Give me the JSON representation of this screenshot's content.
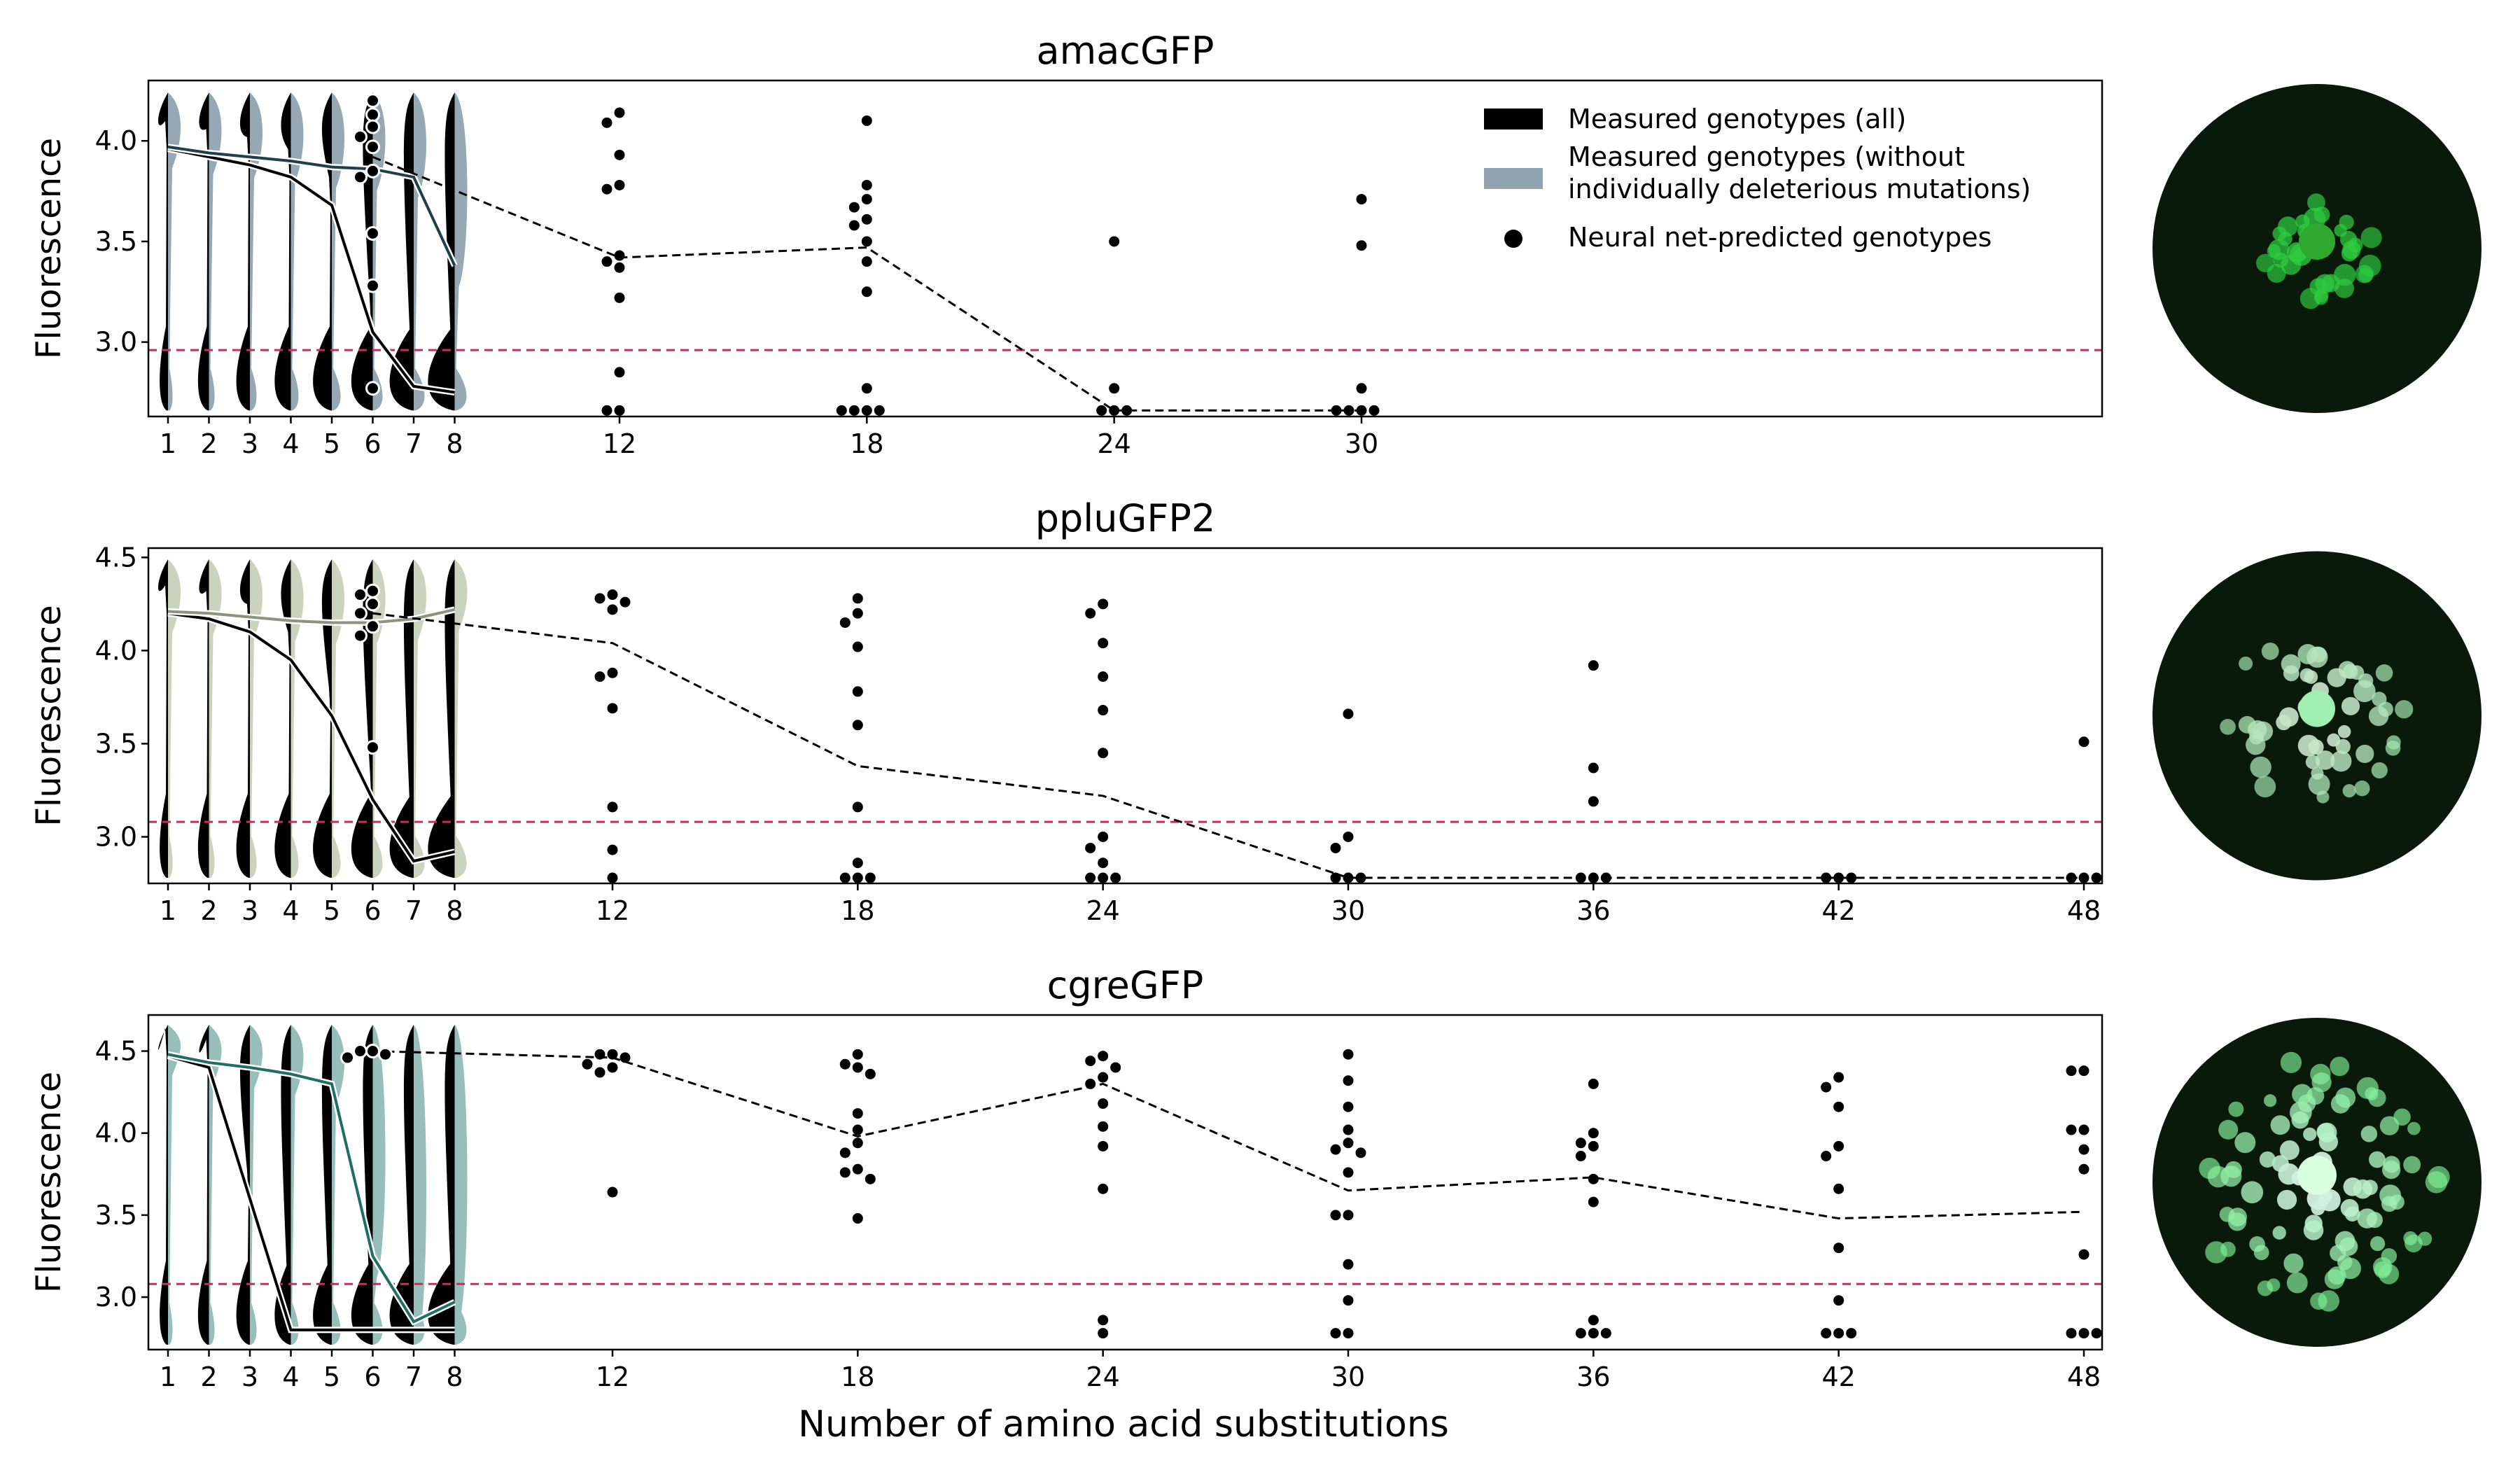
{
  "figure": {
    "xlabel": "Number of amino acid substitutions",
    "legend": {
      "placement": "top-right of first panel",
      "items": [
        {
          "label": "Measured genotypes (all)",
          "swatch": "#000000"
        },
        {
          "label_line1": "Measured genotypes (without",
          "label_line2": "individually deleterious mutations)",
          "swatch": "#8fa3b0"
        },
        {
          "label": "Neural net-predicted genotypes",
          "marker": "dot"
        }
      ]
    }
  },
  "colors": {
    "all": "#000000",
    "threshold": "#d6265a",
    "mean_all_inner": "#000000",
    "image_bg": "#0a1a0a",
    "spot": "#2ecc40"
  },
  "chart_data": [
    {
      "type": "line",
      "title": "amacGFP",
      "ylabel": "Fluorescence",
      "ylim": [
        2.63,
        4.3
      ],
      "yticks": [
        3.0,
        3.5,
        4.0
      ],
      "ytick_labels": [
        "3.0",
        "3.5",
        "4.0"
      ],
      "xticks": [
        1,
        2,
        3,
        4,
        5,
        6,
        7,
        8,
        12,
        18,
        24,
        30
      ],
      "xtick_labels": [
        "1",
        "2",
        "3",
        "4",
        "5",
        "6",
        "7",
        "8",
        "12",
        "18",
        "24",
        "30"
      ],
      "threshold": 2.96,
      "filtered_color": "#8fa3b0",
      "mean_line_color": "#1f3f4a",
      "series": [
        {
          "name": "Measured genotypes (all)",
          "x": [
            1,
            2,
            3,
            4,
            5,
            6,
            7,
            8
          ],
          "y": [
            3.96,
            3.92,
            3.88,
            3.82,
            3.68,
            3.05,
            2.78,
            2.75
          ]
        },
        {
          "name": "Measured genotypes (without individually deleterious mutations)",
          "x": [
            1,
            2,
            3,
            4,
            5,
            6,
            7,
            8
          ],
          "y": [
            3.97,
            3.94,
            3.92,
            3.9,
            3.87,
            3.86,
            3.82,
            3.38
          ]
        },
        {
          "name": "Neural net-predicted genotypes",
          "x": [
            6,
            12,
            18,
            24,
            30
          ],
          "y": [
            3.92,
            3.42,
            3.47,
            2.66,
            2.66
          ]
        }
      ],
      "nn_points": [
        [
          6,
          4.2
        ],
        [
          6,
          4.13
        ],
        [
          6,
          4.07
        ],
        [
          6,
          4.02
        ],
        [
          6,
          3.97
        ],
        [
          6,
          3.85
        ],
        [
          6,
          3.82
        ],
        [
          6,
          3.54
        ],
        [
          6,
          3.28
        ],
        [
          6,
          2.77
        ],
        [
          12,
          4.14
        ],
        [
          12,
          4.09
        ],
        [
          12,
          3.93
        ],
        [
          12,
          3.78
        ],
        [
          12,
          3.76
        ],
        [
          12,
          3.43
        ],
        [
          12,
          3.4
        ],
        [
          12,
          3.37
        ],
        [
          12,
          3.22
        ],
        [
          12,
          2.85
        ],
        [
          12,
          2.66
        ],
        [
          12,
          2.66
        ],
        [
          18,
          4.1
        ],
        [
          18,
          3.78
        ],
        [
          18,
          3.71
        ],
        [
          18,
          3.67
        ],
        [
          18,
          3.61
        ],
        [
          18,
          3.58
        ],
        [
          18,
          3.5
        ],
        [
          18,
          3.4
        ],
        [
          18,
          3.25
        ],
        [
          18,
          2.77
        ],
        [
          18,
          2.66
        ],
        [
          18,
          2.66
        ],
        [
          18,
          2.66
        ],
        [
          18,
          2.66
        ],
        [
          24,
          3.5
        ],
        [
          24,
          2.77
        ],
        [
          24,
          2.66
        ],
        [
          24,
          2.66
        ],
        [
          24,
          2.66
        ],
        [
          30,
          3.71
        ],
        [
          30,
          3.48
        ],
        [
          30,
          2.77
        ],
        [
          30,
          2.66
        ],
        [
          30,
          2.66
        ],
        [
          30,
          2.66
        ],
        [
          30,
          2.66
        ]
      ],
      "image_spots": 36
    },
    {
      "type": "line",
      "title": "ppluGFP2",
      "ylabel": "Fluorescence",
      "ylim": [
        2.75,
        4.55
      ],
      "yticks": [
        3.0,
        3.5,
        4.0,
        4.5
      ],
      "ytick_labels": [
        "3.0",
        "3.5",
        "4.0",
        "4.5"
      ],
      "xticks": [
        1,
        2,
        3,
        4,
        5,
        6,
        7,
        8,
        12,
        18,
        24,
        30,
        36,
        42,
        48
      ],
      "xtick_labels": [
        "1",
        "2",
        "3",
        "4",
        "5",
        "6",
        "7",
        "8",
        "12",
        "18",
        "24",
        "30",
        "36",
        "42",
        "48"
      ],
      "threshold": 3.08,
      "filtered_color": "#c8d1bc",
      "mean_line_color": "#8a9480",
      "series": [
        {
          "name": "Measured genotypes (all)",
          "x": [
            1,
            2,
            3,
            4,
            5,
            6,
            7,
            8
          ],
          "y": [
            4.2,
            4.17,
            4.1,
            3.95,
            3.65,
            3.2,
            2.87,
            2.92
          ]
        },
        {
          "name": "Measured genotypes (without individually deleterious mutations)",
          "x": [
            1,
            2,
            3,
            4,
            5,
            6,
            7,
            8
          ],
          "y": [
            4.21,
            4.2,
            4.18,
            4.16,
            4.15,
            4.15,
            4.17,
            4.22
          ]
        },
        {
          "name": "Neural net-predicted genotypes",
          "x": [
            6,
            12,
            18,
            24,
            30,
            36,
            42,
            48
          ],
          "y": [
            4.2,
            4.04,
            3.38,
            3.22,
            2.78,
            2.78,
            2.78,
            2.78
          ]
        }
      ],
      "nn_points": [
        [
          6,
          4.32
        ],
        [
          6,
          4.3
        ],
        [
          6,
          4.25
        ],
        [
          6,
          4.2
        ],
        [
          6,
          4.13
        ],
        [
          6,
          4.08
        ],
        [
          6,
          3.48
        ],
        [
          12,
          4.3
        ],
        [
          12,
          4.28
        ],
        [
          12,
          4.26
        ],
        [
          12,
          4.22
        ],
        [
          12,
          3.88
        ],
        [
          12,
          3.86
        ],
        [
          12,
          3.69
        ],
        [
          12,
          3.16
        ],
        [
          12,
          2.93
        ],
        [
          12,
          2.78
        ],
        [
          18,
          4.28
        ],
        [
          18,
          4.2
        ],
        [
          18,
          4.15
        ],
        [
          18,
          4.02
        ],
        [
          18,
          3.78
        ],
        [
          18,
          3.6
        ],
        [
          18,
          3.16
        ],
        [
          18,
          2.86
        ],
        [
          18,
          2.78
        ],
        [
          18,
          2.78
        ],
        [
          18,
          2.78
        ],
        [
          24,
          4.25
        ],
        [
          24,
          4.2
        ],
        [
          24,
          4.04
        ],
        [
          24,
          3.86
        ],
        [
          24,
          3.68
        ],
        [
          24,
          3.45
        ],
        [
          24,
          3.0
        ],
        [
          24,
          2.94
        ],
        [
          24,
          2.86
        ],
        [
          24,
          2.78
        ],
        [
          24,
          2.78
        ],
        [
          24,
          2.78
        ],
        [
          30,
          3.66
        ],
        [
          30,
          3.0
        ],
        [
          30,
          2.94
        ],
        [
          30,
          2.78
        ],
        [
          30,
          2.78
        ],
        [
          30,
          2.78
        ],
        [
          36,
          3.92
        ],
        [
          36,
          3.37
        ],
        [
          36,
          3.19
        ],
        [
          36,
          2.78
        ],
        [
          36,
          2.78
        ],
        [
          36,
          2.78
        ],
        [
          42,
          2.78
        ],
        [
          42,
          2.78
        ],
        [
          42,
          2.78
        ],
        [
          48,
          3.51
        ],
        [
          48,
          2.78
        ],
        [
          48,
          2.78
        ],
        [
          48,
          2.78
        ]
      ],
      "image_spots": 50
    },
    {
      "type": "line",
      "title": "cgreGFP",
      "ylabel": "Fluorescence",
      "ylim": [
        2.68,
        4.72
      ],
      "yticks": [
        3.0,
        3.5,
        4.0,
        4.5
      ],
      "ytick_labels": [
        "3.0",
        "3.5",
        "4.0",
        "4.5"
      ],
      "xticks": [
        1,
        2,
        3,
        4,
        5,
        6,
        7,
        8,
        12,
        18,
        24,
        30,
        36,
        42,
        48
      ],
      "xtick_labels": [
        "1",
        "2",
        "3",
        "4",
        "5",
        "6",
        "7",
        "8",
        "12",
        "18",
        "24",
        "30",
        "36",
        "42",
        "48"
      ],
      "threshold": 3.08,
      "filtered_color": "#91bbb4",
      "mean_line_color": "#1f6f62",
      "series": [
        {
          "name": "Measured genotypes (all)",
          "x": [
            1,
            2,
            3,
            4,
            5,
            6,
            7,
            8
          ],
          "y": [
            4.47,
            4.4,
            3.6,
            2.8,
            2.8,
            2.8,
            2.8,
            2.8
          ]
        },
        {
          "name": "Measured genotypes (without individually deleterious mutations)",
          "x": [
            1,
            2,
            3,
            4,
            5,
            6,
            7,
            8
          ],
          "y": [
            4.48,
            4.43,
            4.4,
            4.36,
            4.3,
            3.25,
            2.85,
            2.97
          ]
        },
        {
          "name": "Neural net-predicted genotypes",
          "x": [
            6,
            12,
            18,
            24,
            30,
            36,
            42,
            48
          ],
          "y": [
            4.5,
            4.46,
            3.98,
            4.3,
            3.65,
            3.73,
            3.48,
            3.52
          ]
        }
      ],
      "nn_points": [
        [
          6,
          4.5
        ],
        [
          6,
          4.5
        ],
        [
          6,
          4.48
        ],
        [
          6,
          4.46
        ],
        [
          12,
          4.48
        ],
        [
          12,
          4.48
        ],
        [
          12,
          4.46
        ],
        [
          12,
          4.42
        ],
        [
          12,
          4.4
        ],
        [
          12,
          4.37
        ],
        [
          12,
          3.64
        ],
        [
          18,
          4.48
        ],
        [
          18,
          4.42
        ],
        [
          18,
          4.4
        ],
        [
          18,
          4.36
        ],
        [
          18,
          4.12
        ],
        [
          18,
          4.02
        ],
        [
          18,
          3.94
        ],
        [
          18,
          3.88
        ],
        [
          18,
          3.78
        ],
        [
          18,
          3.76
        ],
        [
          18,
          3.72
        ],
        [
          18,
          3.48
        ],
        [
          24,
          4.47
        ],
        [
          24,
          4.44
        ],
        [
          24,
          4.4
        ],
        [
          24,
          4.34
        ],
        [
          24,
          4.3
        ],
        [
          24,
          4.18
        ],
        [
          24,
          4.04
        ],
        [
          24,
          3.92
        ],
        [
          24,
          3.66
        ],
        [
          24,
          2.86
        ],
        [
          24,
          2.78
        ],
        [
          30,
          4.48
        ],
        [
          30,
          4.32
        ],
        [
          30,
          4.16
        ],
        [
          30,
          4.02
        ],
        [
          30,
          3.94
        ],
        [
          30,
          3.9
        ],
        [
          30,
          3.88
        ],
        [
          30,
          3.76
        ],
        [
          30,
          3.5
        ],
        [
          30,
          3.5
        ],
        [
          30,
          3.2
        ],
        [
          30,
          2.98
        ],
        [
          30,
          2.78
        ],
        [
          30,
          2.78
        ],
        [
          36,
          4.3
        ],
        [
          36,
          4.0
        ],
        [
          36,
          3.94
        ],
        [
          36,
          3.92
        ],
        [
          36,
          3.86
        ],
        [
          36,
          3.72
        ],
        [
          36,
          3.58
        ],
        [
          36,
          2.86
        ],
        [
          36,
          2.78
        ],
        [
          36,
          2.78
        ],
        [
          36,
          2.78
        ],
        [
          42,
          4.34
        ],
        [
          42,
          4.28
        ],
        [
          42,
          4.16
        ],
        [
          42,
          3.92
        ],
        [
          42,
          3.86
        ],
        [
          42,
          3.66
        ],
        [
          42,
          3.3
        ],
        [
          42,
          2.98
        ],
        [
          42,
          2.78
        ],
        [
          42,
          2.78
        ],
        [
          42,
          2.78
        ],
        [
          48,
          4.38
        ],
        [
          48,
          4.38
        ],
        [
          48,
          4.02
        ],
        [
          48,
          4.02
        ],
        [
          48,
          3.9
        ],
        [
          48,
          3.78
        ],
        [
          48,
          3.26
        ],
        [
          48,
          2.78
        ],
        [
          48,
          2.78
        ],
        [
          48,
          2.78
        ]
      ],
      "image_spots": 90
    }
  ]
}
